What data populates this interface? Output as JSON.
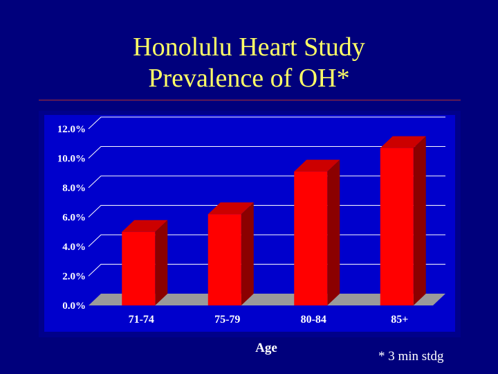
{
  "slide": {
    "title_line1": "Honolulu Heart Study",
    "title_line2": "Prevalence of OH*",
    "footnote": "* 3 min stdg"
  },
  "colors": {
    "background": "#00007c",
    "title": "#ffff66",
    "plot_background": "#0000cc",
    "bar_front": "#ff0000",
    "bar_side": "#8b0000",
    "bar_top": "#cc0000",
    "floor": "#9a9a9a",
    "gridline": "#ffffff"
  },
  "chart_data": {
    "type": "bar",
    "style": "3d",
    "title": "",
    "xlabel": "Age",
    "ylabel": "",
    "categories": [
      "71-74",
      "75-79",
      "80-84",
      "85+"
    ],
    "values": [
      5.0,
      6.2,
      9.1,
      10.7
    ],
    "unit": "%",
    "ylim": [
      0,
      12
    ],
    "yticks": [
      "0.0%",
      "2.0%",
      "4.0%",
      "6.0%",
      "8.0%",
      "10.0%",
      "12.0%"
    ],
    "grid": true,
    "legend": "none"
  }
}
